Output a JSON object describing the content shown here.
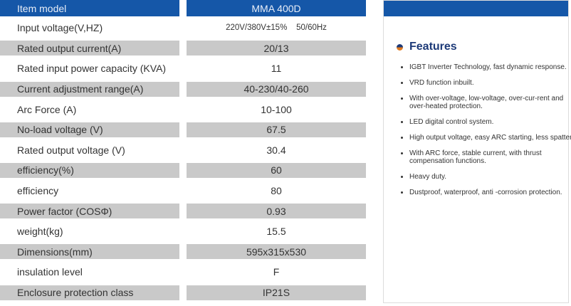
{
  "table": {
    "header": {
      "label": "Item model",
      "value": "MMA  400D"
    },
    "rows": [
      {
        "label": "Input voltage(V,HZ)",
        "value": "220V/380V±15%    50/60Hz"
      },
      {
        "label": "Rated output current(A)",
        "value": "20/13"
      },
      {
        "label": "Rated input power capacity (KVA)",
        "value": "11"
      },
      {
        "label": "Current adjustment range(A)",
        "value": "40-230/40-260"
      },
      {
        "label": "Arc Force (A)",
        "value": "10-100"
      },
      {
        "label": "No-load voltage (V)",
        "value": "67.5"
      },
      {
        "label": "Rated output voltage (V)",
        "value": "30.4"
      },
      {
        "label": "efficiency(%)",
        "value": "60"
      },
      {
        "label": "efficiency",
        "value": "80"
      },
      {
        "label": "Power factor (COSΦ)",
        "value": "0.93"
      },
      {
        "label": "weight(kg)",
        "value": "15.5"
      },
      {
        "label": "Dimensions(mm)",
        "value": "595x315x530"
      },
      {
        "label": "insulation level",
        "value": "F"
      },
      {
        "label": "Enclosure protection class",
        "value": "IP21S"
      }
    ]
  },
  "features": {
    "title": "Features",
    "items": [
      "IGBT Inverter Technology, fast dynamic response.",
      "VRD function inbuilt.",
      "With over-voltage, low-voltage, over-cur-rent and over-heated protection.",
      "LED digital control system.",
      " High output voltage, easy ARC starting, less spatter.",
      "With ARC force, stable current,   with thrust compensation functions.",
      "Heavy duty.",
      "Dustproof, waterproof, anti -corrosion protection."
    ]
  },
  "colors": {
    "header_blue": "#1557a8",
    "title_navy": "#1d3a78",
    "row_grey": "#c9c9c9",
    "accent_orange": "#e07a1f"
  }
}
